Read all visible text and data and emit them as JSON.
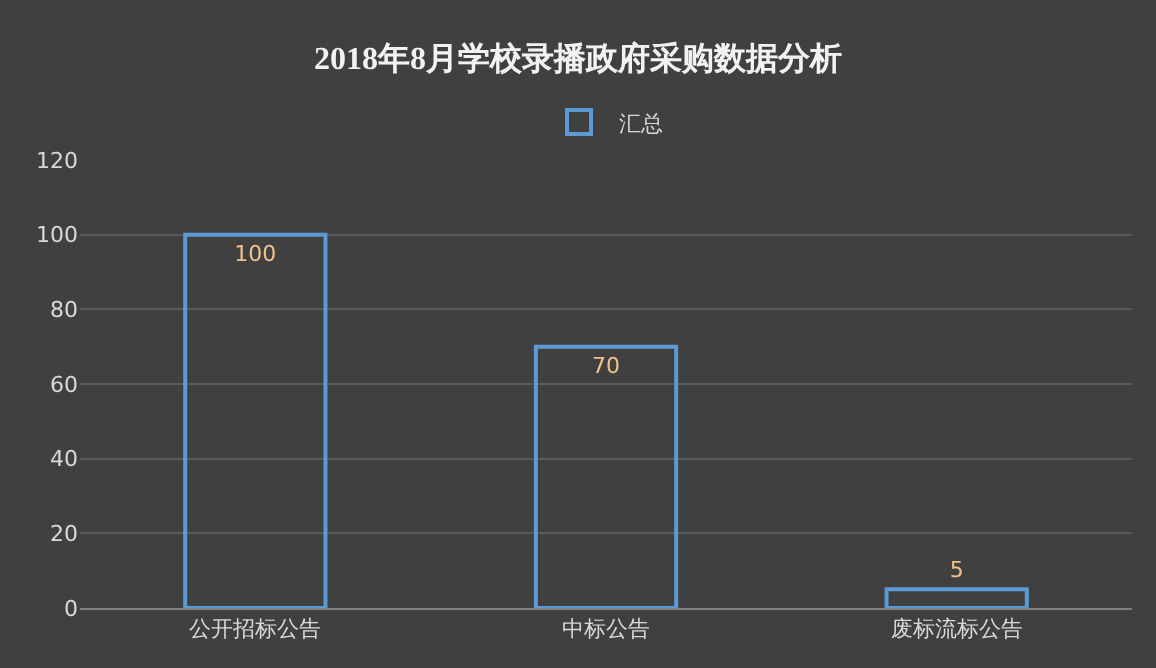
{
  "chart_data": {
    "type": "bar",
    "title": "2018年8月学校录播政府采购数据分析",
    "categories": [
      "公开招标公告",
      "中标公告",
      "废标流标公告"
    ],
    "series": [
      {
        "name": "汇总",
        "color": "#5b9bd5",
        "values": [
          100,
          70,
          5
        ]
      }
    ],
    "ylim": [
      0,
      120
    ],
    "yticks": [
      0,
      20,
      40,
      60,
      80,
      100,
      120
    ],
    "grid": "y",
    "legend": "top",
    "data_labels": true
  }
}
